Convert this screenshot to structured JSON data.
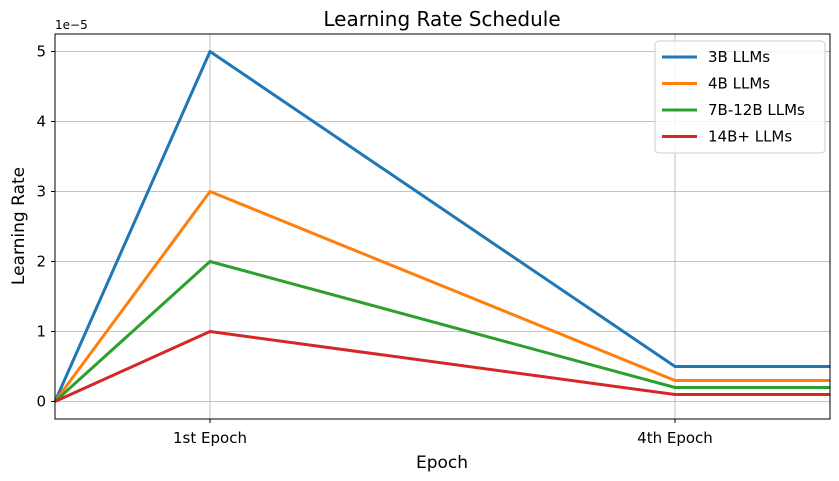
{
  "chart_data": {
    "type": "line",
    "title": "Learning Rate Schedule",
    "xlabel": "Epoch",
    "ylabel": "Learning Rate",
    "y_offset_label": "1e−5",
    "x": [
      0,
      1,
      4,
      5
    ],
    "xlim": [
      0,
      5
    ],
    "ylim": [
      -0.25,
      5.25
    ],
    "x_ticks": [
      {
        "value": 1,
        "label": "1st Epoch"
      },
      {
        "value": 4,
        "label": "4th Epoch"
      }
    ],
    "y_ticks": [
      {
        "value": 0,
        "label": "0"
      },
      {
        "value": 1,
        "label": "1"
      },
      {
        "value": 2,
        "label": "2"
      },
      {
        "value": 3,
        "label": "3"
      },
      {
        "value": 4,
        "label": "4"
      },
      {
        "value": 5,
        "label": "5"
      }
    ],
    "grid": true,
    "legend_position": "top-right",
    "series": [
      {
        "name": "3B LLMs",
        "color": "#1f77b4",
        "values": [
          0,
          5,
          0.5,
          0.5
        ]
      },
      {
        "name": "4B LLMs",
        "color": "#ff7f0e",
        "values": [
          0,
          3,
          0.3,
          0.3
        ]
      },
      {
        "name": "7B-12B LLMs",
        "color": "#2ca02c",
        "values": [
          0,
          2,
          0.2,
          0.2
        ]
      },
      {
        "name": "14B+ LLMs",
        "color": "#d62728",
        "values": [
          0,
          1,
          0.1,
          0.1
        ]
      }
    ]
  }
}
